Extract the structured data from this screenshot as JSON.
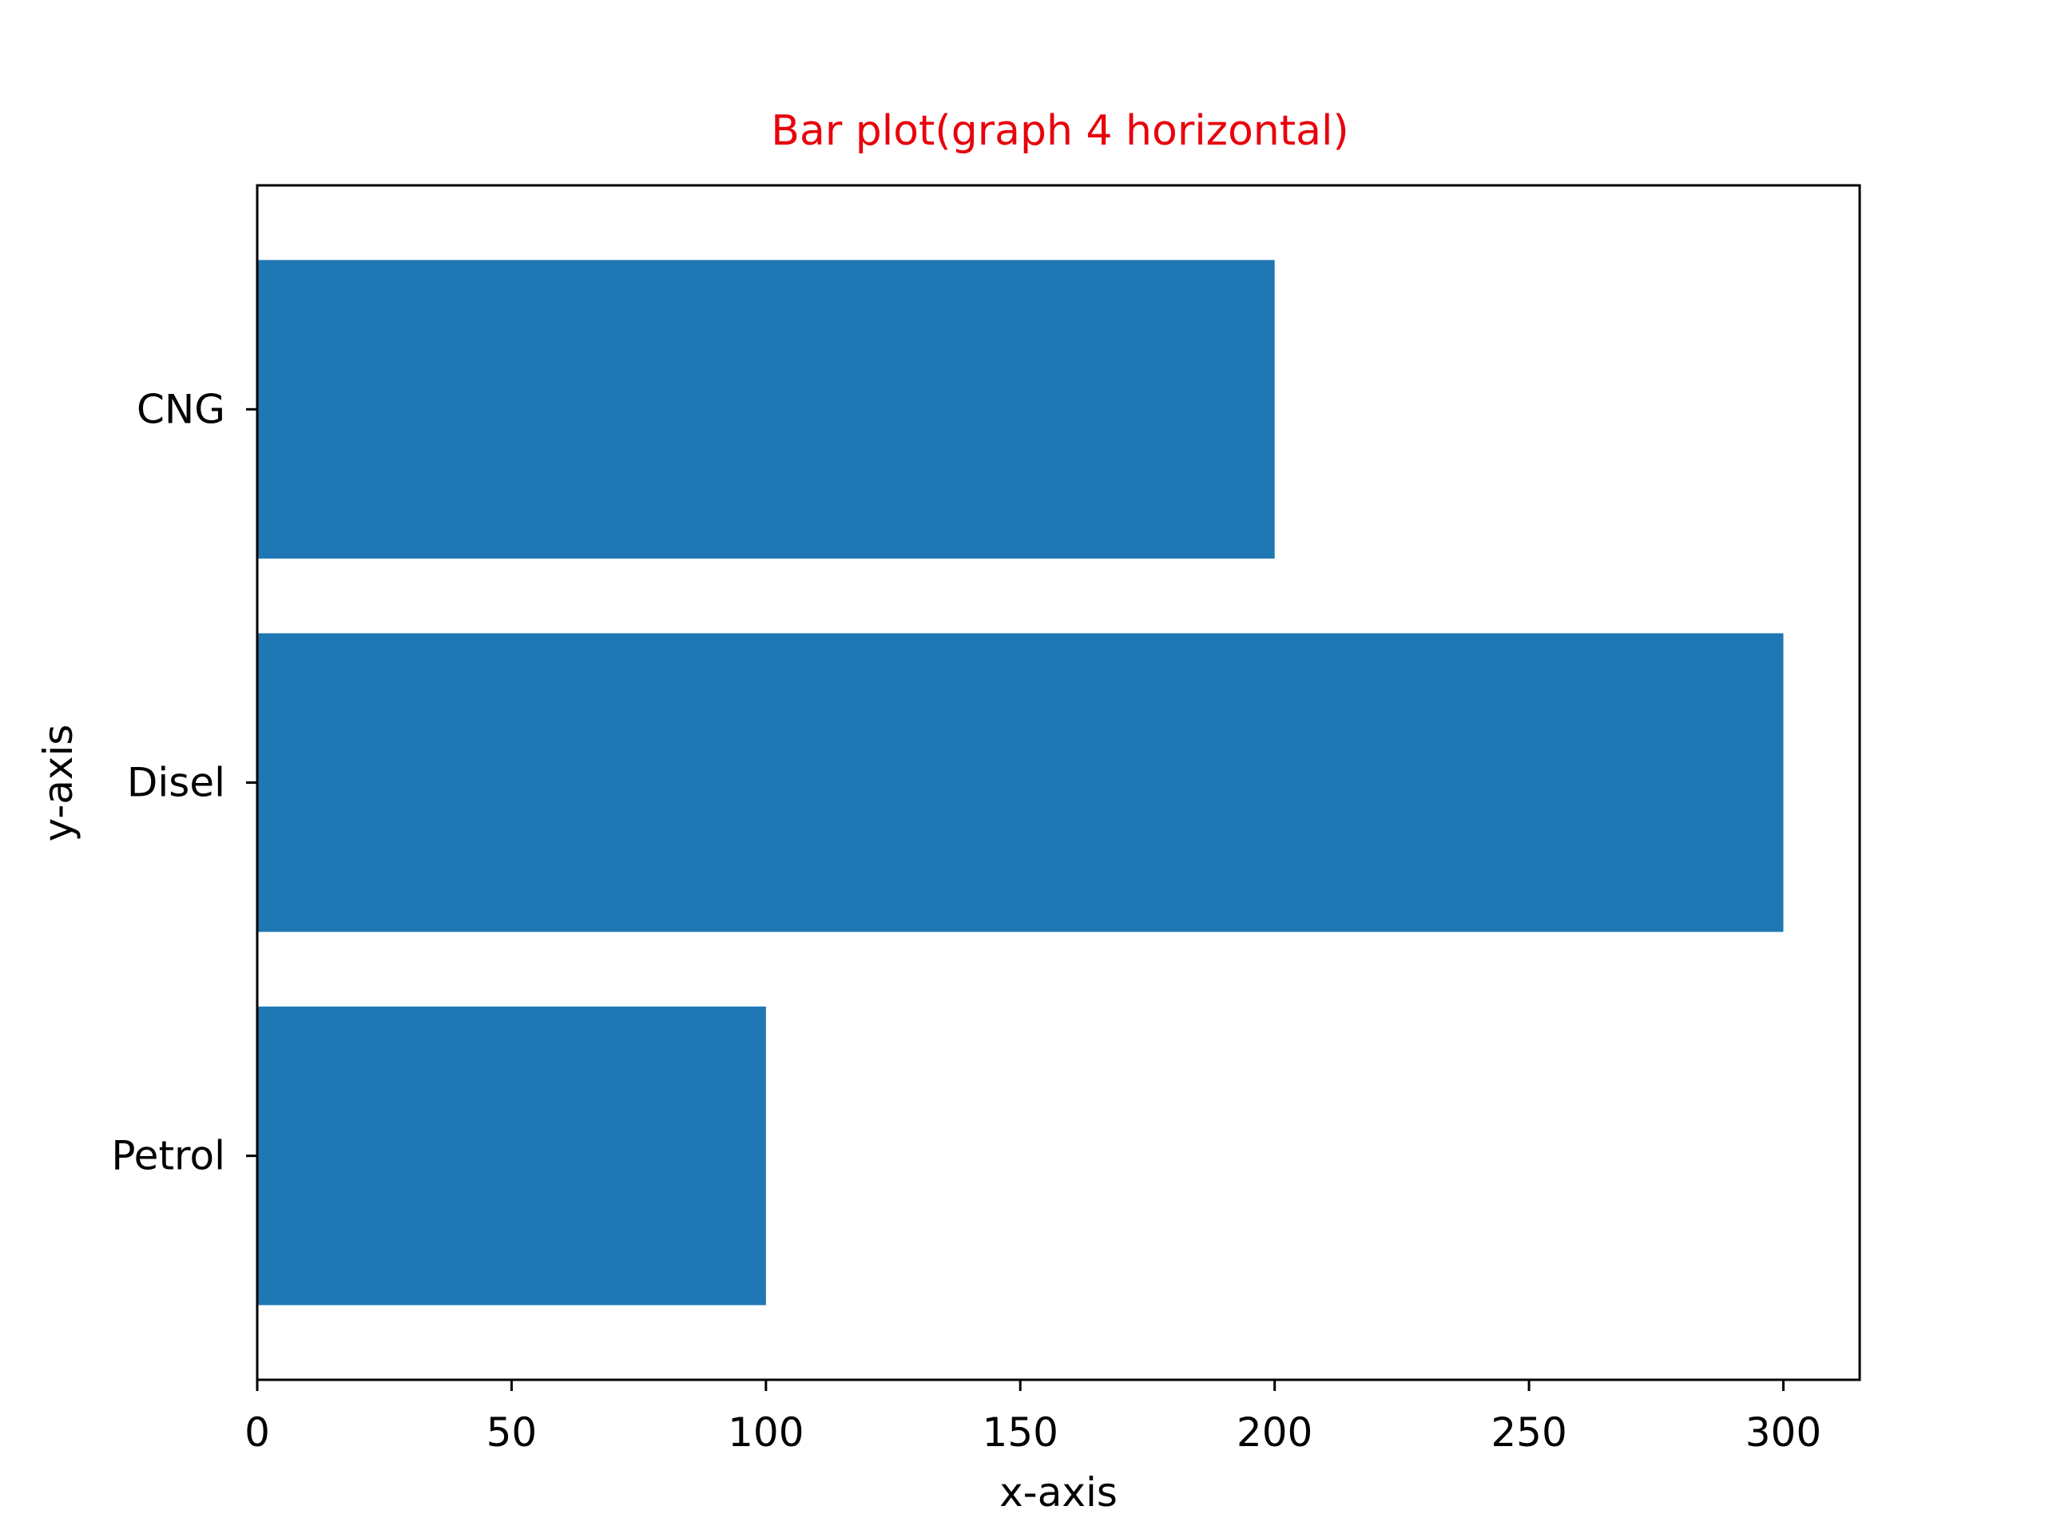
{
  "chart_data": {
    "type": "bar",
    "orientation": "horizontal",
    "title": "Bar plot(graph 4 horizontal)",
    "xlabel": "x-axis",
    "ylabel": "y-axis",
    "categories": [
      "Petrol",
      "Disel",
      "CNG"
    ],
    "values": [
      100,
      300,
      200
    ],
    "xlim": [
      0,
      315
    ],
    "xticks": [
      0,
      50,
      100,
      150,
      200,
      250,
      300
    ],
    "grid": false,
    "legend": false
  },
  "colors": {
    "bar": "#1f77b4",
    "title": "#e8000b",
    "axis": "#000000",
    "background": "#ffffff"
  }
}
